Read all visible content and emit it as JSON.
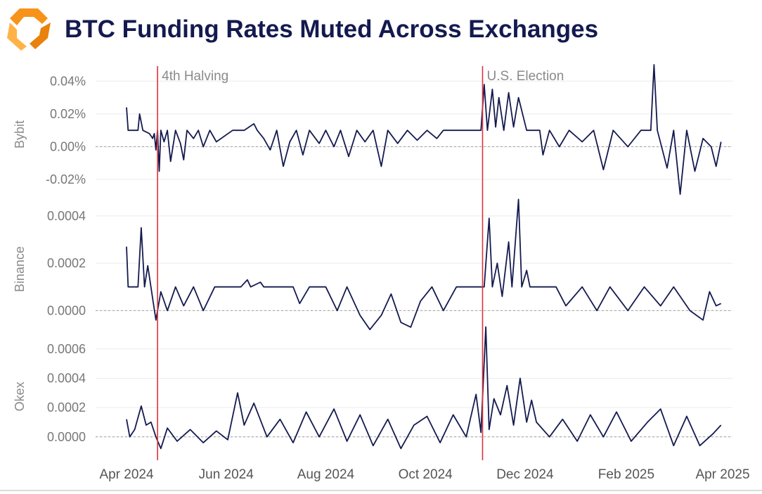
{
  "header": {
    "title": "BTC Funding Rates Muted Across Exchanges",
    "logo_icon": "orange-hexagon-logo-icon",
    "logo_colors": [
      "#f7931a",
      "#ffb347",
      "#e8820c"
    ]
  },
  "chart_data": {
    "type": "line",
    "title": "BTC Funding Rates Muted Across Exchanges",
    "line_color": "#141a4f",
    "event_color": "#e0303a",
    "grid": true,
    "x_range": [
      "2024-04-01",
      "2025-04-01"
    ],
    "x_ticks": [
      "Apr 2024",
      "Jun 2024",
      "Aug 2024",
      "Oct 2024",
      "Dec 2024",
      "Feb 2025",
      "Apr 2025"
    ],
    "events": [
      {
        "label": "4th Halving",
        "date": "2024-04-20"
      },
      {
        "label": "U.S. Election",
        "date": "2024-11-05"
      }
    ],
    "panels": [
      {
        "name": "Bybit",
        "ylim": [
          -0.00035,
          0.0005
        ],
        "yticks": [
          -0.0002,
          0,
          0.0002,
          0.0004
        ],
        "ytick_labels": [
          "-0.02%",
          "0.00%",
          "0.02%",
          "0.04%"
        ],
        "baseline": 0.0,
        "points": [
          [
            "2024-04-01",
            0.00024
          ],
          [
            "2024-04-02",
            0.0001
          ],
          [
            "2024-04-08",
            0.0001
          ],
          [
            "2024-04-09",
            0.0002
          ],
          [
            "2024-04-11",
            0.0001
          ],
          [
            "2024-04-15",
            8e-05
          ],
          [
            "2024-04-17",
            5e-05
          ],
          [
            "2024-04-18",
            8e-05
          ],
          [
            "2024-04-19",
            -2e-05
          ],
          [
            "2024-04-20",
            0.0001
          ],
          [
            "2024-04-21",
            -0.00015
          ],
          [
            "2024-04-22",
            0.0001
          ],
          [
            "2024-04-24",
            3e-05
          ],
          [
            "2024-04-26",
            0.0001
          ],
          [
            "2024-04-28",
            -9e-05
          ],
          [
            "2024-05-01",
            0.0001
          ],
          [
            "2024-05-04",
            2e-05
          ],
          [
            "2024-05-06",
            -8e-05
          ],
          [
            "2024-05-08",
            0.0001
          ],
          [
            "2024-05-12",
            5e-05
          ],
          [
            "2024-05-15",
            0.0001
          ],
          [
            "2024-05-18",
            0.0
          ],
          [
            "2024-05-22",
            0.0001
          ],
          [
            "2024-05-26",
            3e-05
          ],
          [
            "2024-06-05",
            0.0001
          ],
          [
            "2024-06-12",
            0.0001
          ],
          [
            "2024-06-18",
            0.00014
          ],
          [
            "2024-06-20",
            0.0001
          ],
          [
            "2024-06-24",
            5e-05
          ],
          [
            "2024-06-28",
            -2e-05
          ],
          [
            "2024-07-02",
            0.0001
          ],
          [
            "2024-07-06",
            -0.00012
          ],
          [
            "2024-07-10",
            3e-05
          ],
          [
            "2024-07-14",
            0.0001
          ],
          [
            "2024-07-18",
            -5e-05
          ],
          [
            "2024-07-22",
            0.0001
          ],
          [
            "2024-07-28",
            2e-05
          ],
          [
            "2024-08-01",
            0.0001
          ],
          [
            "2024-08-06",
            0.0
          ],
          [
            "2024-08-10",
            0.0001
          ],
          [
            "2024-08-15",
            -6e-05
          ],
          [
            "2024-08-20",
            0.0001
          ],
          [
            "2024-08-25",
            3e-05
          ],
          [
            "2024-08-30",
            0.0001
          ],
          [
            "2024-09-04",
            -0.00012
          ],
          [
            "2024-09-08",
            0.0001
          ],
          [
            "2024-09-14",
            2e-05
          ],
          [
            "2024-09-20",
            0.0001
          ],
          [
            "2024-09-26",
            4e-05
          ],
          [
            "2024-10-02",
            0.0001
          ],
          [
            "2024-10-08",
            5e-05
          ],
          [
            "2024-10-12",
            0.0001
          ],
          [
            "2024-11-04",
            0.0001
          ],
          [
            "2024-11-06",
            0.00038
          ],
          [
            "2024-11-08",
            0.0001
          ],
          [
            "2024-11-11",
            0.00035
          ],
          [
            "2024-11-13",
            0.00012
          ],
          [
            "2024-11-15",
            0.0003
          ],
          [
            "2024-11-18",
            0.0001
          ],
          [
            "2024-11-21",
            0.00033
          ],
          [
            "2024-11-24",
            0.00012
          ],
          [
            "2024-11-27",
            0.0003
          ],
          [
            "2024-12-02",
            0.0001
          ],
          [
            "2024-12-10",
            0.0001
          ],
          [
            "2024-12-12",
            -5e-05
          ],
          [
            "2024-12-16",
            0.0001
          ],
          [
            "2024-12-22",
            0.0
          ],
          [
            "2024-12-28",
            0.0001
          ],
          [
            "2025-01-05",
            3e-05
          ],
          [
            "2025-01-12",
            0.0001
          ],
          [
            "2025-01-18",
            -0.00014
          ],
          [
            "2025-01-24",
            0.0001
          ],
          [
            "2025-02-02",
            0.0
          ],
          [
            "2025-02-10",
            0.0001
          ],
          [
            "2025-02-16",
            0.0001
          ],
          [
            "2025-02-18",
            0.0005
          ],
          [
            "2025-02-20",
            0.0001
          ],
          [
            "2025-02-26",
            -0.00013
          ],
          [
            "2025-03-02",
            0.0001
          ],
          [
            "2025-03-06",
            -0.00029
          ],
          [
            "2025-03-10",
            0.0001
          ],
          [
            "2025-03-15",
            -0.00015
          ],
          [
            "2025-03-20",
            5e-05
          ],
          [
            "2025-03-25",
            0.0
          ],
          [
            "2025-03-28",
            -0.00012
          ],
          [
            "2025-03-31",
            3e-05
          ]
        ]
      },
      {
        "name": "Binance",
        "ylim": [
          -0.0001,
          0.00045
        ],
        "yticks": [
          0,
          0.0002,
          0.0004
        ],
        "ytick_labels": [
          "0.0000",
          "0.0002",
          "0.0004"
        ],
        "baseline": 0.0,
        "points": [
          [
            "2024-04-01",
            0.00027
          ],
          [
            "2024-04-02",
            0.0001
          ],
          [
            "2024-04-08",
            0.0001
          ],
          [
            "2024-04-10",
            0.00035
          ],
          [
            "2024-04-12",
            0.0001
          ],
          [
            "2024-04-14",
            0.00019
          ],
          [
            "2024-04-17",
            5e-05
          ],
          [
            "2024-04-19",
            -4e-05
          ],
          [
            "2024-04-22",
            8e-05
          ],
          [
            "2024-04-26",
            0.0
          ],
          [
            "2024-05-01",
            0.0001
          ],
          [
            "2024-05-06",
            2e-05
          ],
          [
            "2024-05-12",
            0.0001
          ],
          [
            "2024-05-18",
            0.0
          ],
          [
            "2024-05-25",
            0.0001
          ],
          [
            "2024-06-10",
            0.0001
          ],
          [
            "2024-06-14",
            0.00013
          ],
          [
            "2024-06-16",
            0.0001
          ],
          [
            "2024-06-22",
            0.00012
          ],
          [
            "2024-06-24",
            0.0001
          ],
          [
            "2024-07-12",
            0.0001
          ],
          [
            "2024-07-16",
            3e-05
          ],
          [
            "2024-07-22",
            0.0001
          ],
          [
            "2024-08-01",
            0.0001
          ],
          [
            "2024-08-08",
            0.0
          ],
          [
            "2024-08-14",
            0.0001
          ],
          [
            "2024-08-22",
            -2e-05
          ],
          [
            "2024-08-28",
            -8e-05
          ],
          [
            "2024-09-04",
            -2e-05
          ],
          [
            "2024-09-10",
            7e-05
          ],
          [
            "2024-09-16",
            -5e-05
          ],
          [
            "2024-09-22",
            -7e-05
          ],
          [
            "2024-09-28",
            4e-05
          ],
          [
            "2024-10-05",
            0.0001
          ],
          [
            "2024-10-12",
            0.0
          ],
          [
            "2024-10-20",
            0.0001
          ],
          [
            "2024-11-04",
            0.0001
          ],
          [
            "2024-11-06",
            0.0001
          ],
          [
            "2024-11-09",
            0.00039
          ],
          [
            "2024-11-11",
            0.0001
          ],
          [
            "2024-11-14",
            0.0002
          ],
          [
            "2024-11-17",
            6e-05
          ],
          [
            "2024-11-21",
            0.00029
          ],
          [
            "2024-11-23",
            0.0001
          ],
          [
            "2024-11-27",
            0.00047
          ],
          [
            "2024-11-29",
            0.0001
          ],
          [
            "2024-12-02",
            0.00017
          ],
          [
            "2024-12-04",
            0.0001
          ],
          [
            "2024-12-20",
            0.0001
          ],
          [
            "2024-12-26",
            2e-05
          ],
          [
            "2025-01-05",
            0.0001
          ],
          [
            "2025-01-14",
            0.0
          ],
          [
            "2025-01-22",
            0.0001
          ],
          [
            "2025-02-02",
            0.0
          ],
          [
            "2025-02-12",
            0.0001
          ],
          [
            "2025-02-22",
            2e-05
          ],
          [
            "2025-03-02",
            0.0001
          ],
          [
            "2025-03-12",
            0.0
          ],
          [
            "2025-03-20",
            -4e-05
          ],
          [
            "2025-03-24",
            8e-05
          ],
          [
            "2025-03-28",
            2e-05
          ],
          [
            "2025-03-31",
            3e-05
          ]
        ]
      },
      {
        "name": "Okex",
        "ylim": [
          -0.00015,
          0.0007
        ],
        "yticks": [
          0,
          0.0002,
          0.0004,
          0.0006
        ],
        "ytick_labels": [
          "0.0000",
          "0.0002",
          "0.0004",
          "0.0006"
        ],
        "baseline": 0.0,
        "points": [
          [
            "2024-04-01",
            0.00012
          ],
          [
            "2024-04-03",
            0.0
          ],
          [
            "2024-04-06",
            5e-05
          ],
          [
            "2024-04-10",
            0.00021
          ],
          [
            "2024-04-13",
            8e-05
          ],
          [
            "2024-04-16",
            0.0001
          ],
          [
            "2024-04-19",
            0.0
          ],
          [
            "2024-04-22",
            -8e-05
          ],
          [
            "2024-04-26",
            6e-05
          ],
          [
            "2024-05-02",
            -3e-05
          ],
          [
            "2024-05-10",
            5e-05
          ],
          [
            "2024-05-18",
            -4e-05
          ],
          [
            "2024-05-26",
            4e-05
          ],
          [
            "2024-06-02",
            -2e-05
          ],
          [
            "2024-06-08",
            0.0003
          ],
          [
            "2024-06-12",
            8e-05
          ],
          [
            "2024-06-18",
            0.00023
          ],
          [
            "2024-06-26",
            0.0
          ],
          [
            "2024-07-04",
            0.00012
          ],
          [
            "2024-07-12",
            -4e-05
          ],
          [
            "2024-07-20",
            0.00017
          ],
          [
            "2024-07-28",
            0.0
          ],
          [
            "2024-08-06",
            0.00019
          ],
          [
            "2024-08-14",
            -3e-05
          ],
          [
            "2024-08-22",
            0.00015
          ],
          [
            "2024-08-30",
            -6e-05
          ],
          [
            "2024-09-08",
            0.00012
          ],
          [
            "2024-09-16",
            -8e-05
          ],
          [
            "2024-09-24",
            8e-05
          ],
          [
            "2024-10-02",
            0.00014
          ],
          [
            "2024-10-10",
            -4e-05
          ],
          [
            "2024-10-18",
            0.00015
          ],
          [
            "2024-10-26",
            0.0
          ],
          [
            "2024-11-01",
            0.00029
          ],
          [
            "2024-11-04",
            3e-05
          ],
          [
            "2024-11-07",
            0.00075
          ],
          [
            "2024-11-09",
            5e-05
          ],
          [
            "2024-11-12",
            0.00026
          ],
          [
            "2024-11-16",
            0.00015
          ],
          [
            "2024-11-20",
            0.00035
          ],
          [
            "2024-11-24",
            8e-05
          ],
          [
            "2024-11-28",
            0.0004
          ],
          [
            "2024-12-02",
            0.0001
          ],
          [
            "2024-12-05",
            0.00025
          ],
          [
            "2024-12-08",
            0.0001
          ],
          [
            "2024-12-16",
            0.0
          ],
          [
            "2024-12-24",
            0.00012
          ],
          [
            "2025-01-02",
            -3e-05
          ],
          [
            "2025-01-10",
            0.00015
          ],
          [
            "2025-01-18",
            0.0
          ],
          [
            "2025-01-26",
            0.00017
          ],
          [
            "2025-02-04",
            -3e-05
          ],
          [
            "2025-02-14",
            0.0001
          ],
          [
            "2025-02-22",
            0.00019
          ],
          [
            "2025-03-02",
            -6e-05
          ],
          [
            "2025-03-10",
            0.00014
          ],
          [
            "2025-03-18",
            -6e-05
          ],
          [
            "2025-03-26",
            2e-05
          ],
          [
            "2025-03-31",
            8e-05
          ]
        ]
      }
    ]
  }
}
